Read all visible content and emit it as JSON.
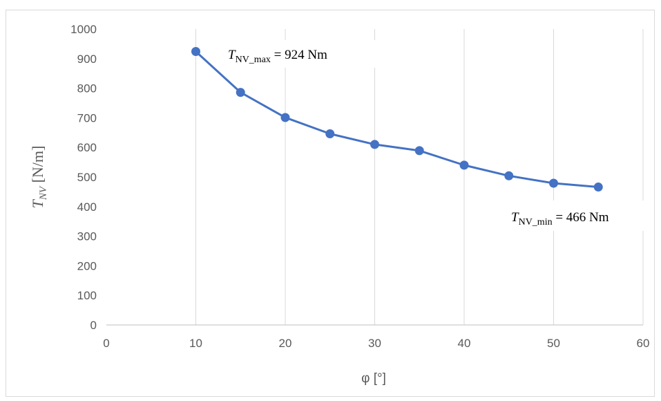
{
  "chart_data": {
    "type": "line",
    "xlabel": "φ [°]",
    "ylabel": {
      "symbol": "T",
      "subscript": "NV",
      "unit": " [N/m]"
    },
    "xlim": [
      0,
      60
    ],
    "ylim": [
      0,
      1000
    ],
    "x_ticks": [
      0,
      10,
      20,
      30,
      40,
      50,
      60
    ],
    "y_ticks": [
      0,
      100,
      200,
      300,
      400,
      500,
      600,
      700,
      800,
      900,
      1000
    ],
    "grid": "vertical",
    "series": [
      {
        "color": "#4472c4",
        "marker": "circle",
        "x": [
          10,
          15,
          20,
          25,
          30,
          35,
          40,
          45,
          50,
          55
        ],
        "y": [
          924,
          786,
          701,
          646,
          610,
          589,
          540,
          504,
          479,
          466
        ]
      }
    ],
    "annotations": [
      {
        "symbol": "T",
        "subscript": "NV_max",
        "text": " = 924 Nm"
      },
      {
        "symbol": "T",
        "subscript": "NV_min",
        "text": " = 466 Nm"
      }
    ]
  }
}
